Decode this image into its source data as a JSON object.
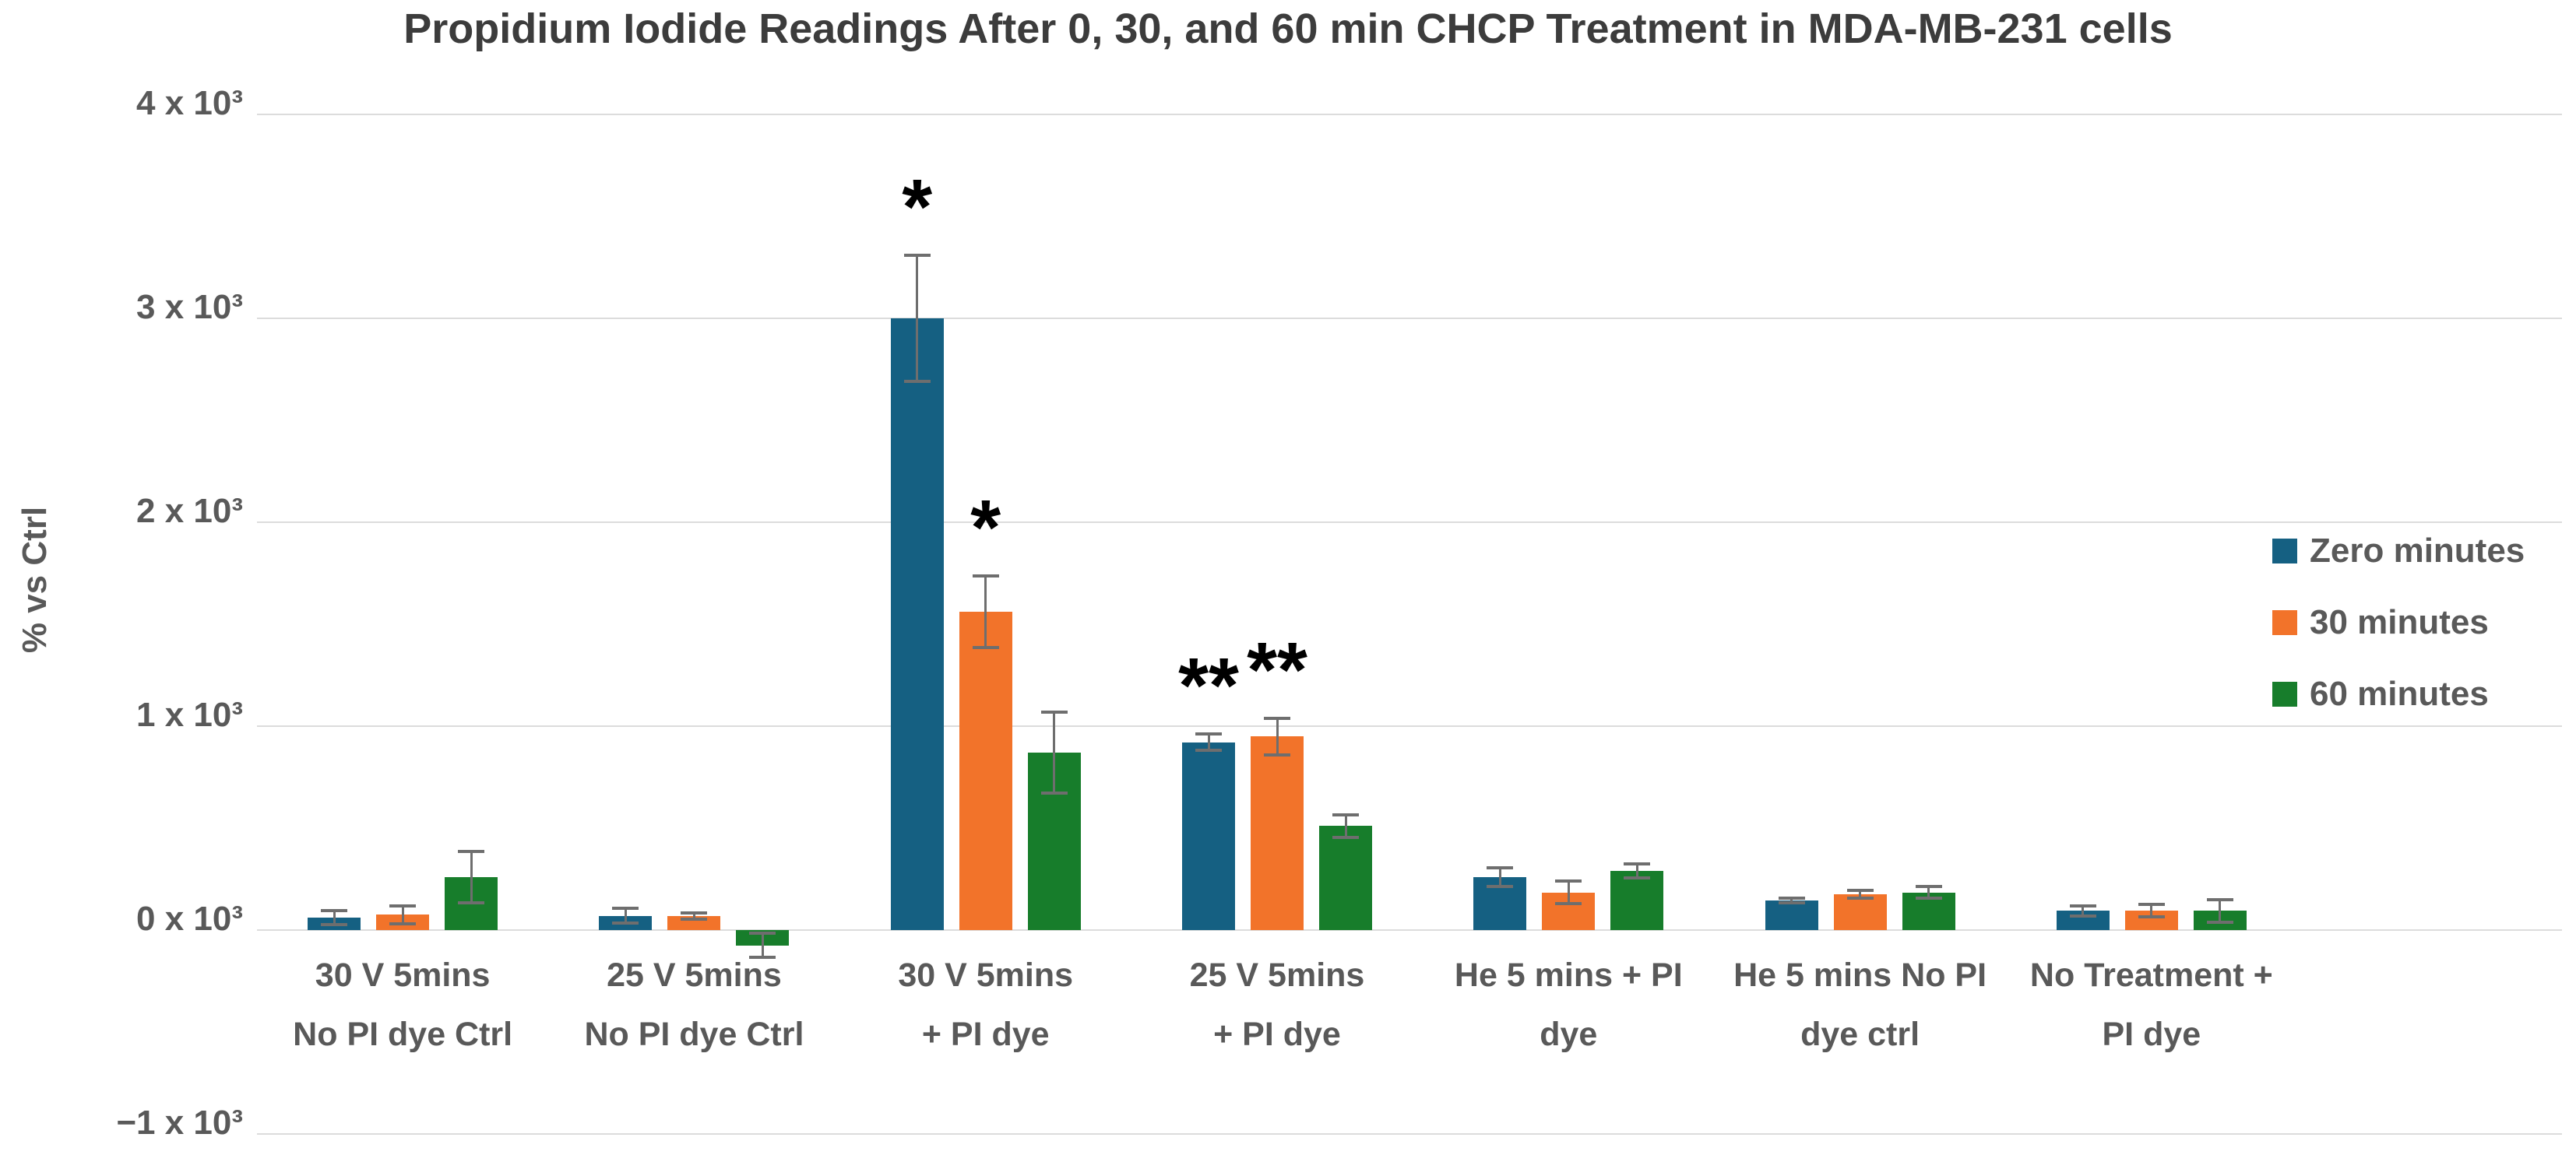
{
  "chart_data": {
    "type": "bar",
    "title": "Propidium Iodide Readings After 0, 30, and 60 min CHCP Treatment in MDA-MB-231 cells",
    "xlabel": "",
    "ylabel": "% vs Ctrl",
    "ylim": [
      -1000,
      4000
    ],
    "grid": "horizontal",
    "legend_position": "right-overlay",
    "yticks": [
      {
        "label": "4 x 10³",
        "value": 4000
      },
      {
        "label": "3 x 10³",
        "value": 3000
      },
      {
        "label": "2 x 10³",
        "value": 2000
      },
      {
        "label": "1 x 10³",
        "value": 1000
      },
      {
        "label": "0 x 10³",
        "value": 0
      },
      {
        "label": "−1 x 10³",
        "value": -1000
      }
    ],
    "categories": [
      {
        "line1": "30 V  5mins",
        "line2": "No PI dye Ctrl"
      },
      {
        "line1": "25 V  5mins",
        "line2": "No PI dye Ctrl"
      },
      {
        "line1": "30 V  5mins",
        "line2": "+ PI dye"
      },
      {
        "line1": "25 V  5mins",
        "line2": "+ PI dye"
      },
      {
        "line1": "He 5 mins + PI",
        "line2": "dye"
      },
      {
        "line1": "He 5 mins No PI",
        "line2": "dye ctrl"
      },
      {
        "line1": "No Treatment +",
        "line2": "PI dye"
      }
    ],
    "series": [
      {
        "name": "Zero minutes",
        "color": "#156082",
        "values": [
          60,
          70,
          3000,
          920,
          260,
          145,
          95
        ],
        "errors": [
          35,
          35,
          310,
          40,
          45,
          10,
          25
        ],
        "sig": [
          "",
          "",
          "*",
          "**",
          "",
          "",
          ""
        ]
      },
      {
        "name": "30 minutes",
        "color": "#F2732A",
        "values": [
          75,
          70,
          1560,
          950,
          185,
          175,
          95
        ],
        "errors": [
          45,
          15,
          175,
          90,
          55,
          20,
          30
        ],
        "sig": [
          "",
          "",
          "*",
          "**",
          "",
          "",
          ""
        ]
      },
      {
        "name": "60 minutes",
        "color": "#177D2B",
        "values": [
          260,
          -75,
          870,
          510,
          290,
          185,
          95
        ],
        "errors": [
          125,
          60,
          200,
          55,
          35,
          30,
          55
        ],
        "sig": [
          "",
          "",
          "",
          "",
          "",
          "",
          ""
        ]
      }
    ]
  }
}
